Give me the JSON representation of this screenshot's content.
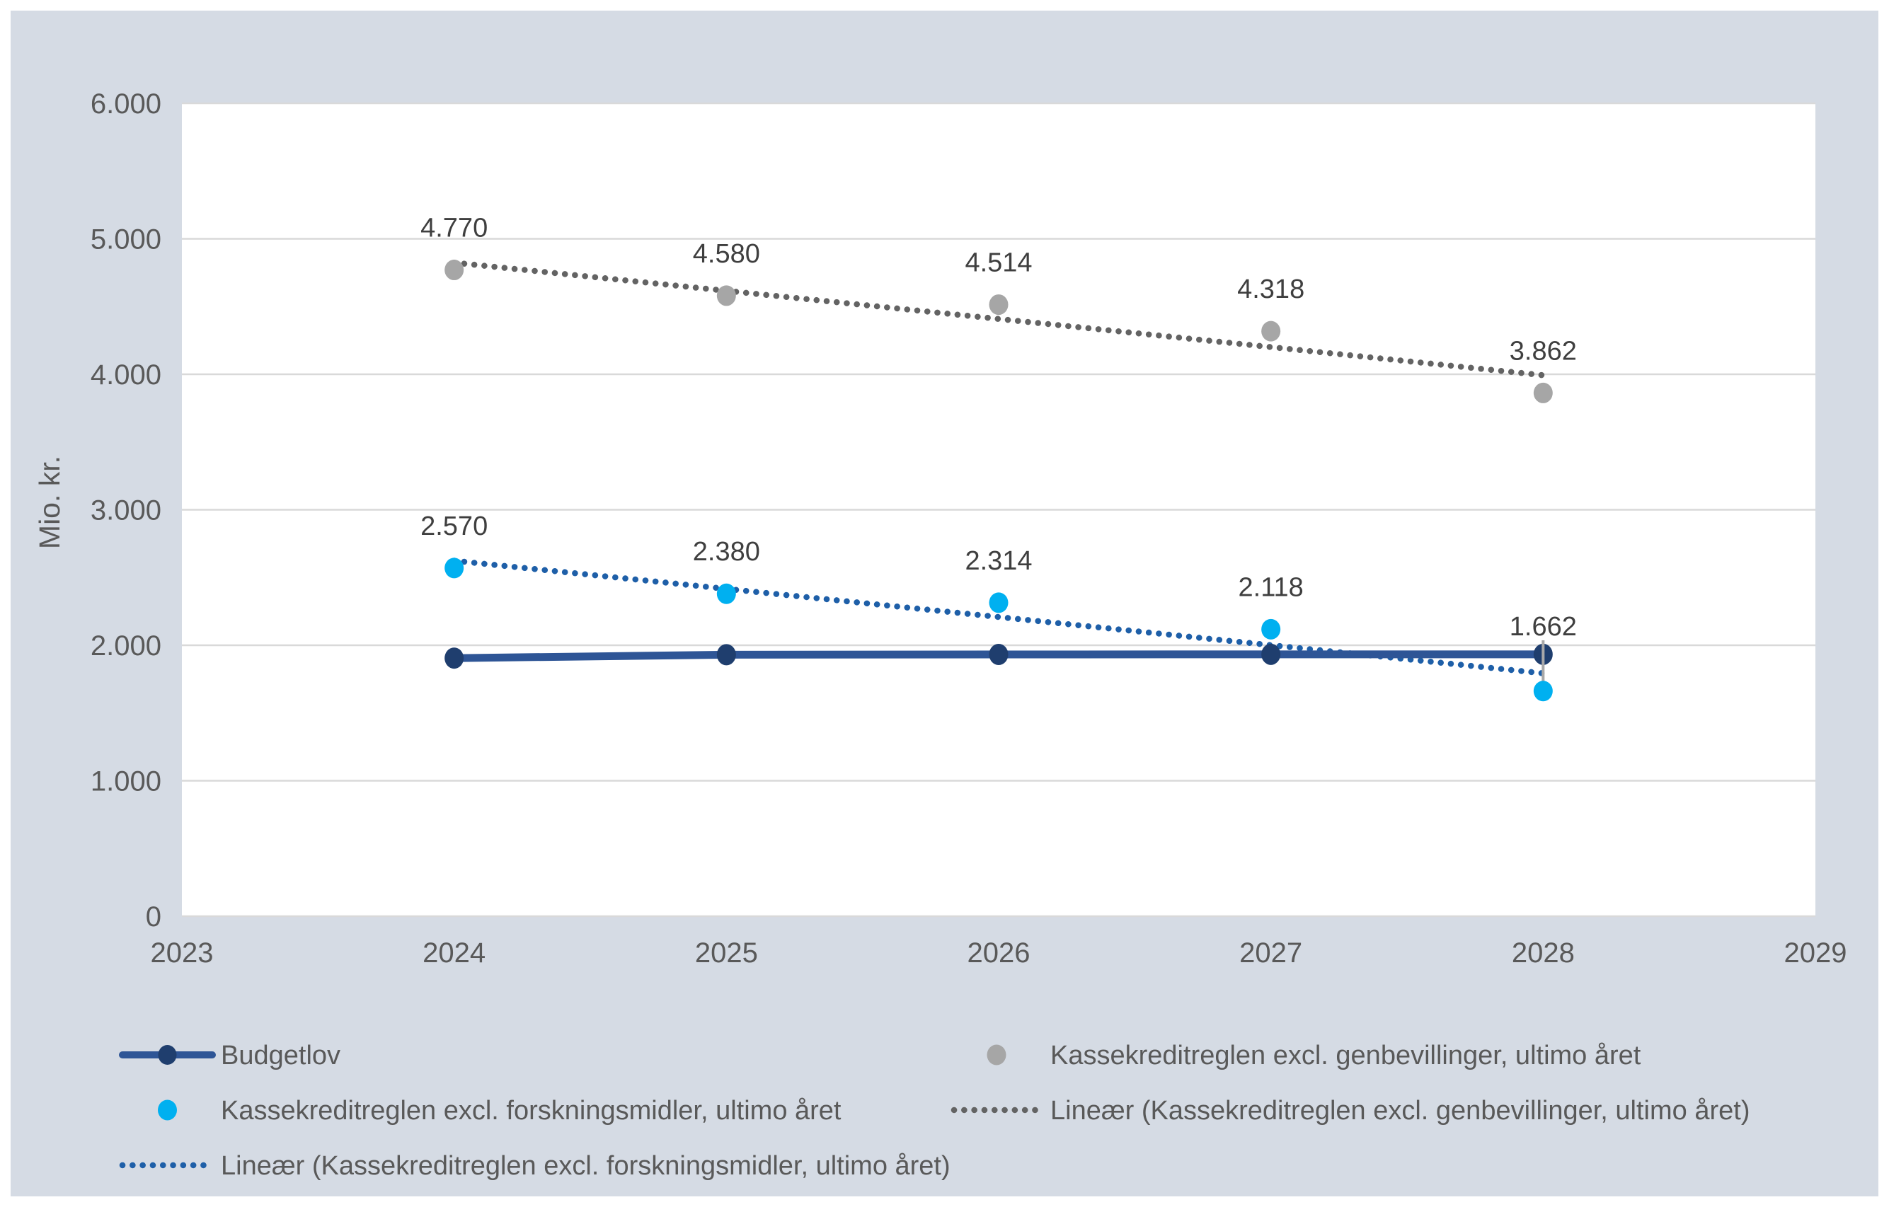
{
  "page": {
    "background": "#ffffff",
    "panel_background": "#d5dbe4",
    "plot_background": "#ffffff",
    "gridline_color": "#d9d9d9",
    "axis_text_color": "#595959",
    "data_label_color": "#3f3f3f"
  },
  "chart_data": {
    "type": "line",
    "title": "",
    "xlabel": "",
    "ylabel": "Mio. kr.",
    "xlim": [
      2023,
      2029
    ],
    "ylim": [
      0,
      6000
    ],
    "grid": true,
    "legend_position": "bottom",
    "x_ticks": [
      {
        "value": 2023,
        "label": "2023"
      },
      {
        "value": 2024,
        "label": "2024"
      },
      {
        "value": 2025,
        "label": "2025"
      },
      {
        "value": 2026,
        "label": "2026"
      },
      {
        "value": 2027,
        "label": "2027"
      },
      {
        "value": 2028,
        "label": "2028"
      },
      {
        "value": 2029,
        "label": "2029"
      }
    ],
    "y_ticks": [
      {
        "value": 0,
        "label": "0"
      },
      {
        "value": 1000,
        "label": "1.000"
      },
      {
        "value": 2000,
        "label": "2.000"
      },
      {
        "value": 3000,
        "label": "3.000"
      },
      {
        "value": 4000,
        "label": "4.000"
      },
      {
        "value": 5000,
        "label": "5.000"
      },
      {
        "value": 6000,
        "label": "6.000"
      }
    ],
    "series": [
      {
        "name": "Lineær (Kassekreditreglen excl. genbevillinger, ultimo året)",
        "type": "trendline",
        "color": "#636363",
        "x": [
          2024,
          2028
        ],
        "values": [
          4824,
          3993
        ]
      },
      {
        "name": "Kassekreditreglen excl. genbevillinger, ultimo året",
        "type": "scatter",
        "color": "#a6a6a6",
        "x": [
          2024,
          2025,
          2026,
          2027,
          2028
        ],
        "values": [
          4770,
          4580,
          4514,
          4318,
          3862
        ],
        "labels": [
          "4.770",
          "4.580",
          "4.514",
          "4.318",
          "3.862"
        ]
      },
      {
        "name": "Lineær (Kassekreditreglen excl. forskningsmidler, ultimo året)",
        "type": "trendline",
        "color": "#1e5fa8",
        "x": [
          2024,
          2028
        ],
        "values": [
          2624,
          1793
        ]
      },
      {
        "name": "Budgetlov",
        "type": "line",
        "color": "#2e5596",
        "marker_color": "#1f3e6e",
        "x": [
          2024,
          2025,
          2026,
          2027,
          2028
        ],
        "values": [
          1905,
          1930,
          1932,
          1933,
          1933
        ],
        "labels": []
      },
      {
        "name": "Kassekreditreglen excl. forskningsmidler, ultimo året",
        "type": "scatter",
        "color": "#00b0f0",
        "x": [
          2024,
          2025,
          2026,
          2027,
          2028
        ],
        "values": [
          2570,
          2380,
          2314,
          2118,
          1662
        ],
        "labels": [
          "2.570",
          "2.380",
          "2.314",
          "2.118",
          "1.662"
        ],
        "callout": {
          "point_index": 4,
          "label_baseline_y": 898,
          "leader_color": "#a8a8a8"
        }
      }
    ],
    "legend_items": [
      {
        "column": 0,
        "row": 0,
        "series": 3,
        "symbol": "line-marker"
      },
      {
        "column": 1,
        "row": 0,
        "series": 1,
        "symbol": "dot"
      },
      {
        "column": 0,
        "row": 1,
        "series": 4,
        "symbol": "dot"
      },
      {
        "column": 1,
        "row": 1,
        "series": 0,
        "symbol": "dotted-line"
      },
      {
        "column": 0,
        "row": 2,
        "series": 2,
        "symbol": "dotted-line"
      }
    ]
  }
}
